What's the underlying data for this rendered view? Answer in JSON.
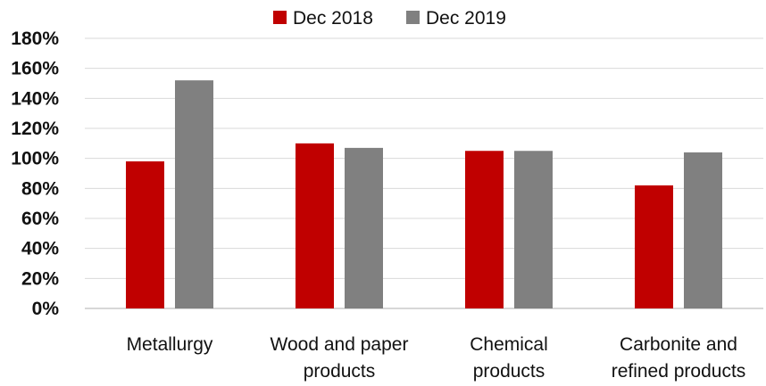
{
  "chart_data": {
    "type": "bar",
    "categories": [
      [
        "Metallurgy"
      ],
      [
        "Wood and paper",
        "products"
      ],
      [
        "Chemical",
        "products"
      ],
      [
        "Carbonite and",
        "refined products"
      ]
    ],
    "series": [
      {
        "name": "Dec 2018",
        "color": "#c00000",
        "values": [
          98,
          110,
          105,
          82
        ]
      },
      {
        "name": "Dec 2019",
        "color": "#808080",
        "values": [
          152,
          107,
          105,
          104
        ]
      }
    ],
    "y_ticks": [
      "0%",
      "20%",
      "40%",
      "60%",
      "80%",
      "100%",
      "120%",
      "140%",
      "160%",
      "180%"
    ],
    "ylim": [
      0,
      180
    ],
    "grid": true,
    "legend_position": "top-center",
    "title": "",
    "xlabel": "",
    "ylabel": ""
  }
}
